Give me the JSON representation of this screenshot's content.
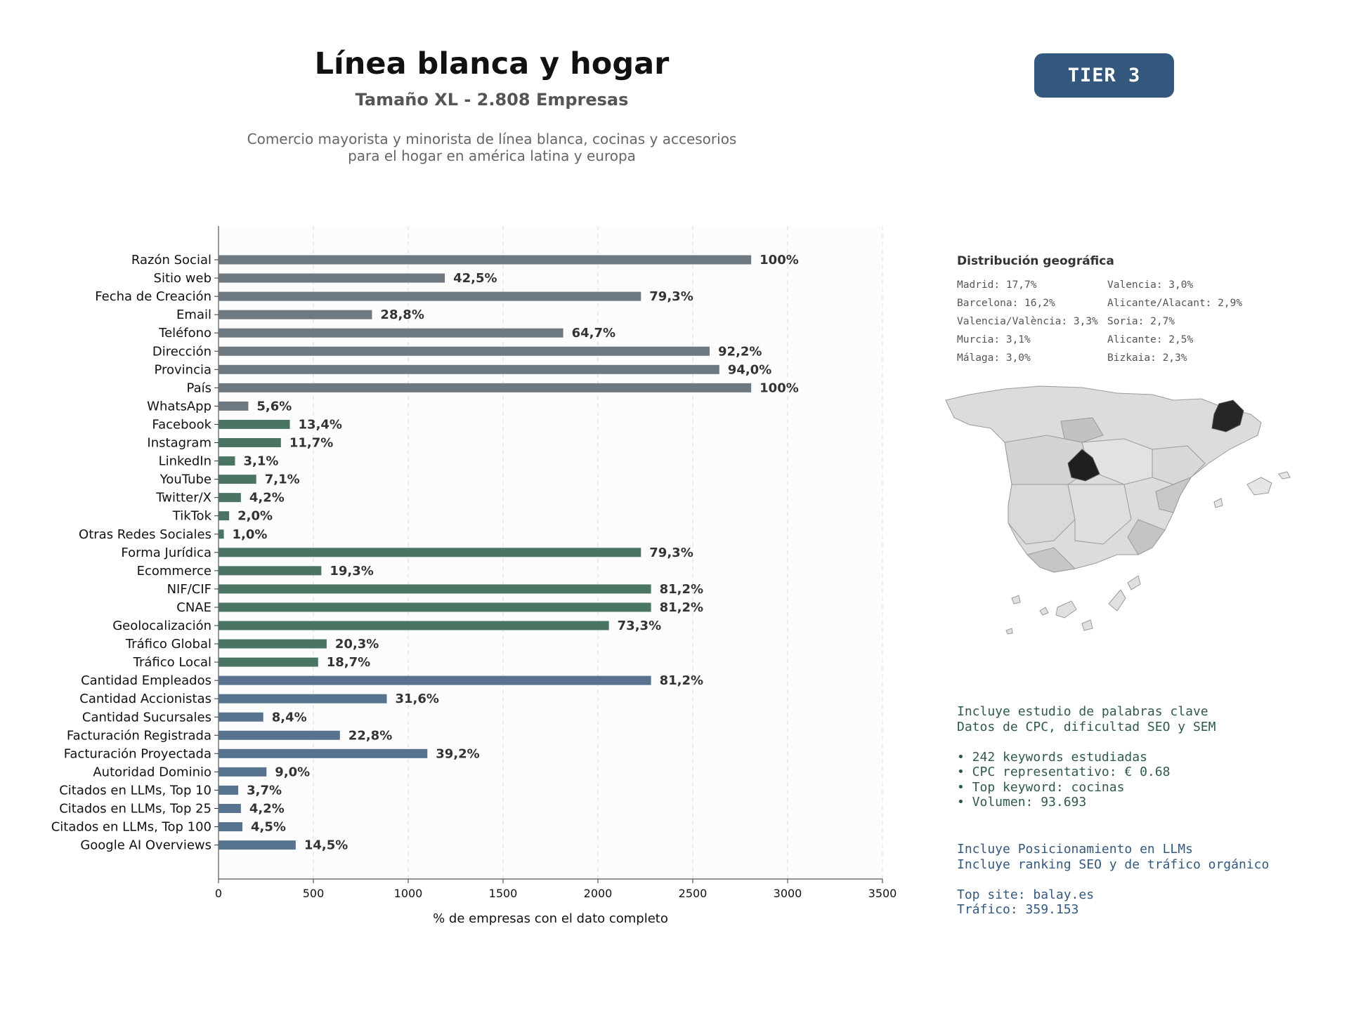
{
  "header": {
    "title": "Línea blanca y hogar",
    "subtitle": "Tamaño XL - 2.808 Empresas",
    "description_line1": "Comercio mayorista y minorista de línea blanca, cocinas y accesorios",
    "description_line2": "para el hogar en américa latina y europa",
    "tier_label": "TIER 3",
    "tier_color": "#34587d"
  },
  "chart_data": {
    "type": "bar",
    "orientation": "horizontal",
    "xlabel": "% de empresas con el dato completo",
    "xlim": [
      0,
      3500
    ],
    "xticks": [
      0,
      500,
      1000,
      1500,
      2000,
      2500,
      3000,
      3500
    ],
    "grid": "vertical dashed",
    "colors": {
      "basic": "#6e7880",
      "digital": "#4a7562",
      "advanced": "#58738f"
    },
    "bars": [
      {
        "label": "Razón Social",
        "value": 2808,
        "pct": "100%",
        "group": "basic"
      },
      {
        "label": "Sitio web",
        "value": 1193,
        "pct": "42,5%",
        "group": "basic"
      },
      {
        "label": "Fecha de Creación",
        "value": 2227,
        "pct": "79,3%",
        "group": "basic"
      },
      {
        "label": "Email",
        "value": 809,
        "pct": "28,8%",
        "group": "basic"
      },
      {
        "label": "Teléfono",
        "value": 1817,
        "pct": "64,7%",
        "group": "basic"
      },
      {
        "label": "Dirección",
        "value": 2589,
        "pct": "92,2%",
        "group": "basic"
      },
      {
        "label": "Provincia",
        "value": 2640,
        "pct": "94,0%",
        "group": "basic"
      },
      {
        "label": "País",
        "value": 2808,
        "pct": "100%",
        "group": "basic"
      },
      {
        "label": "WhatsApp",
        "value": 157,
        "pct": "5,6%",
        "group": "basic"
      },
      {
        "label": "Facebook",
        "value": 376,
        "pct": "13,4%",
        "group": "digital"
      },
      {
        "label": "Instagram",
        "value": 329,
        "pct": "11,7%",
        "group": "digital"
      },
      {
        "label": "LinkedIn",
        "value": 87,
        "pct": "3,1%",
        "group": "digital"
      },
      {
        "label": "YouTube",
        "value": 199,
        "pct": "7,1%",
        "group": "digital"
      },
      {
        "label": "Twitter/X",
        "value": 118,
        "pct": "4,2%",
        "group": "digital"
      },
      {
        "label": "TikTok",
        "value": 56,
        "pct": "2,0%",
        "group": "digital"
      },
      {
        "label": "Otras Redes Sociales",
        "value": 28,
        "pct": "1,0%",
        "group": "digital"
      },
      {
        "label": "Forma Jurídica",
        "value": 2227,
        "pct": "79,3%",
        "group": "digital"
      },
      {
        "label": "Ecommerce",
        "value": 542,
        "pct": "19,3%",
        "group": "digital"
      },
      {
        "label": "NIF/CIF",
        "value": 2280,
        "pct": "81,2%",
        "group": "digital"
      },
      {
        "label": "CNAE",
        "value": 2280,
        "pct": "81,2%",
        "group": "digital"
      },
      {
        "label": "Geolocalización",
        "value": 2058,
        "pct": "73,3%",
        "group": "digital"
      },
      {
        "label": "Tráfico Global",
        "value": 570,
        "pct": "20,3%",
        "group": "digital"
      },
      {
        "label": "Tráfico Local",
        "value": 525,
        "pct": "18,7%",
        "group": "digital"
      },
      {
        "label": "Cantidad Empleados",
        "value": 2280,
        "pct": "81,2%",
        "group": "advanced"
      },
      {
        "label": "Cantidad Accionistas",
        "value": 887,
        "pct": "31,6%",
        "group": "advanced"
      },
      {
        "label": "Cantidad Sucursales",
        "value": 236,
        "pct": "8,4%",
        "group": "advanced"
      },
      {
        "label": "Facturación Registrada",
        "value": 640,
        "pct": "22,8%",
        "group": "advanced"
      },
      {
        "label": "Facturación Proyectada",
        "value": 1101,
        "pct": "39,2%",
        "group": "advanced"
      },
      {
        "label": "Autoridad Dominio",
        "value": 253,
        "pct": "9,0%",
        "group": "advanced"
      },
      {
        "label": "Citados en LLMs, Top 10",
        "value": 104,
        "pct": "3,7%",
        "group": "advanced"
      },
      {
        "label": "Citados en LLMs, Top 25",
        "value": 118,
        "pct": "4,2%",
        "group": "advanced"
      },
      {
        "label": "Citados en LLMs, Top 100",
        "value": 126,
        "pct": "4,5%",
        "group": "advanced"
      },
      {
        "label": "Google AI Overviews",
        "value": 407,
        "pct": "14,5%",
        "group": "advanced"
      }
    ]
  },
  "geo": {
    "title": "Distribución geográfica",
    "left_column": [
      "Madrid: 17,7%",
      "Barcelona: 16,2%",
      "Valencia/València: 3,3%",
      "Murcia: 3,1%",
      "Málaga: 3,0%"
    ],
    "right_column": [
      "Valencia: 3,0%",
      "Alicante/Alacant: 2,9%",
      "Soria: 2,7%",
      "Alicante: 2,5%",
      "Bizkaia: 2,3%"
    ]
  },
  "keywords": {
    "color": "#2f5a48",
    "line1": "Incluye estudio de palabras clave",
    "line2": "Datos de CPC, dificultad SEO y SEM",
    "bullet1": "• 242 keywords estudiadas",
    "bullet2": "• CPC representativo: € 0.68",
    "bullet3": "• Top keyword: cocinas",
    "bullet4": "• Volumen: 93.693"
  },
  "llm": {
    "color": "#34587d",
    "line1": "Incluye Posicionamiento en LLMs",
    "line2": "Incluye ranking SEO y de tráfico orgánico",
    "line3": "Top site: balay.es",
    "line4": "Tráfico: 359.153"
  }
}
